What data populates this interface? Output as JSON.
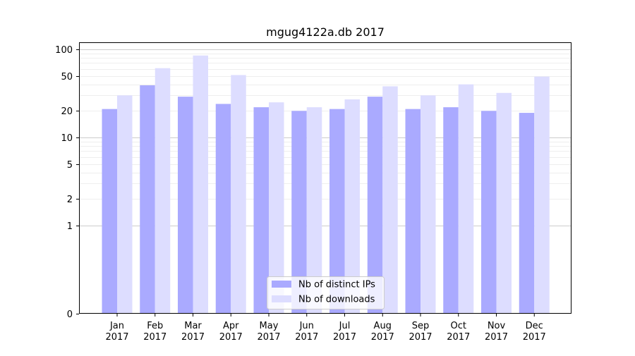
{
  "colors": {
    "ips": "#aaaaff",
    "downloads": "#ddddff",
    "major_grid": "#cccccc",
    "minor_grid": "#eeeeee",
    "axis": "#000000",
    "legend_border": "#cccccc"
  },
  "chart_data": {
    "type": "bar",
    "title": "mgug4122a.db 2017",
    "xlabel": "",
    "ylabel": "",
    "y_scale": "symlog",
    "ylim": [
      0,
      120
    ],
    "y_ticks": [
      0,
      1,
      2,
      5,
      10,
      20,
      50,
      100
    ],
    "y_tick_labels": [
      "0",
      "1",
      "2",
      "5",
      "10",
      "20",
      "50",
      "100"
    ],
    "grid": true,
    "legend_position": "bottom-center",
    "categories": [
      [
        "Jan",
        "2017"
      ],
      [
        "Feb",
        "2017"
      ],
      [
        "Mar",
        "2017"
      ],
      [
        "Apr",
        "2017"
      ],
      [
        "May",
        "2017"
      ],
      [
        "Jun",
        "2017"
      ],
      [
        "Jul",
        "2017"
      ],
      [
        "Aug",
        "2017"
      ],
      [
        "Sep",
        "2017"
      ],
      [
        "Oct",
        "2017"
      ],
      [
        "Nov",
        "2017"
      ],
      [
        "Dec",
        "2017"
      ]
    ],
    "series": [
      {
        "name": "Nb of distinct IPs",
        "color_key": "ips",
        "values": [
          21,
          39,
          29,
          24,
          22,
          20,
          21,
          29,
          21,
          22,
          20,
          19
        ]
      },
      {
        "name": "Nb of downloads",
        "color_key": "downloads",
        "values": [
          30,
          61,
          85,
          51,
          25,
          22,
          27,
          38,
          30,
          40,
          32,
          49
        ]
      }
    ]
  }
}
